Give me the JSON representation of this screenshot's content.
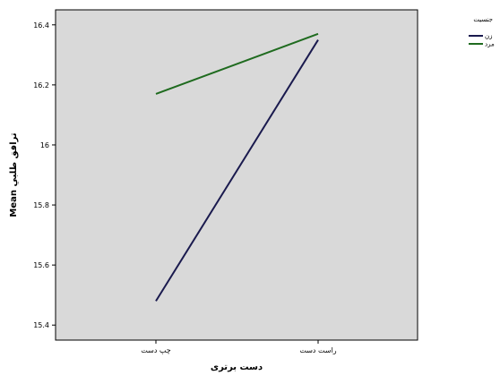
{
  "chart_data": {
    "type": "line",
    "xlabel": "دست برتری",
    "ylabel": "Mean ترافق طلبي",
    "categories": [
      "چپ دست",
      "راست دست"
    ],
    "ylim": [
      15.35,
      16.45
    ],
    "yticks": [
      "15.4",
      "15.6",
      "15.8",
      "16",
      "16.2",
      "16.4"
    ],
    "ytick_values": [
      15.4,
      15.6,
      15.8,
      16.0,
      16.2,
      16.4
    ],
    "grid": false,
    "background": "#d9d9d9",
    "legend": {
      "title": "جنسیت",
      "position": "right"
    },
    "series": [
      {
        "name": "زن",
        "color": "#1a1a4e",
        "values": [
          15.48,
          16.35
        ]
      },
      {
        "name": "مرد",
        "color": "#1f6b1f",
        "values": [
          16.17,
          16.37
        ]
      }
    ]
  }
}
